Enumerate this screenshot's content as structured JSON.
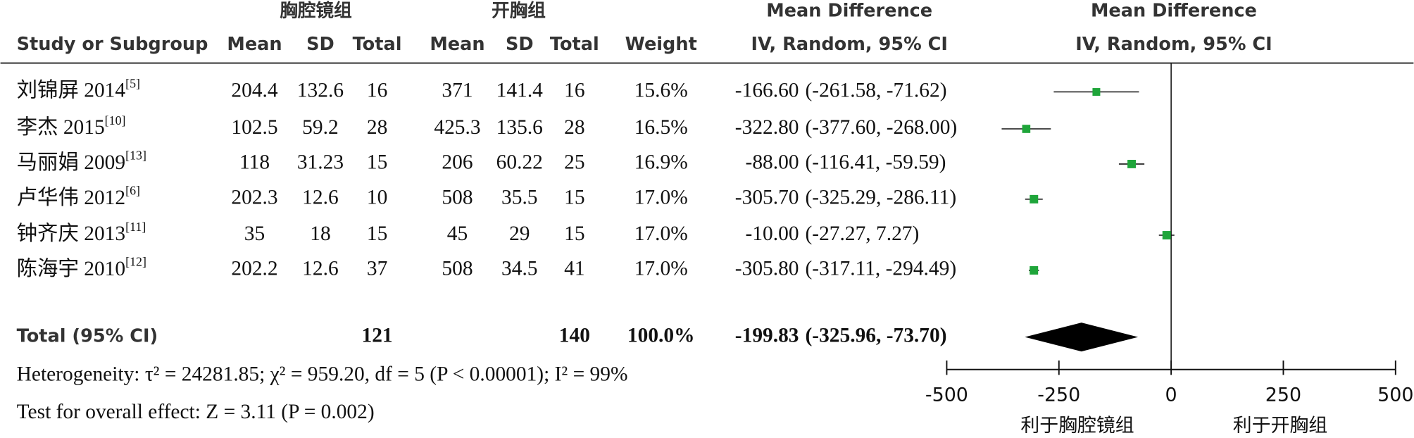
{
  "chart_data": {
    "type": "forest",
    "group_headers": [
      "胸腔镜组",
      "开胸组",
      "Mean Difference",
      "Mean Difference"
    ],
    "columns": [
      "Study or Subgroup",
      "Mean",
      "SD",
      "Total",
      "Mean",
      "SD",
      "Total",
      "Weight",
      "IV, Random, 95% CI",
      "IV, Random, 95% CI"
    ],
    "rows": [
      {
        "study": "刘锦屏 2014",
        "ref": "[5]",
        "exp_mean": 204.4,
        "exp_sd": 132.6,
        "exp_total": 16,
        "ctl_mean": 371,
        "ctl_sd": 141.4,
        "ctl_total": 16,
        "weight": 15.6,
        "weight_label": "15.6%",
        "md": -166.6,
        "md_label": "-166.60",
        "ci_low": -261.58,
        "ci_high": -71.62,
        "ci_label": "(-261.58, -71.62)"
      },
      {
        "study": "李杰 2015",
        "ref": "[10]",
        "exp_mean": 102.5,
        "exp_sd": 59.2,
        "exp_total": 28,
        "ctl_mean": 425.3,
        "ctl_sd": 135.6,
        "ctl_total": 28,
        "weight": 16.5,
        "weight_label": "16.5%",
        "md": -322.8,
        "md_label": "-322.80",
        "ci_low": -377.6,
        "ci_high": -268,
        "ci_label": "(-377.60, -268.00)"
      },
      {
        "study": "马丽娟 2009",
        "ref": "[13]",
        "exp_mean": 118,
        "exp_sd": 31.23,
        "exp_total": 15,
        "ctl_mean": 206,
        "ctl_sd": 60.22,
        "ctl_total": 25,
        "weight": 16.9,
        "weight_label": "16.9%",
        "md": -88,
        "md_label": "-88.00",
        "ci_low": -116.41,
        "ci_high": -59.59,
        "ci_label": "(-116.41, -59.59)"
      },
      {
        "study": "卢华伟 2012",
        "ref": "[6]",
        "exp_mean": 202.3,
        "exp_sd": 12.6,
        "exp_total": 10,
        "ctl_mean": 508,
        "ctl_sd": 35.5,
        "ctl_total": 15,
        "weight": 17.0,
        "weight_label": "17.0%",
        "md": -305.7,
        "md_label": "-305.70",
        "ci_low": -325.29,
        "ci_high": -286.11,
        "ci_label": "(-325.29, -286.11)"
      },
      {
        "study": "钟齐庆 2013",
        "ref": "[11]",
        "exp_mean": 35,
        "exp_sd": 18,
        "exp_total": 15,
        "ctl_mean": 45,
        "ctl_sd": 29,
        "ctl_total": 15,
        "weight": 17.0,
        "weight_label": "17.0%",
        "md": -10,
        "md_label": "-10.00",
        "ci_low": -27.27,
        "ci_high": 7.27,
        "ci_label": "(-27.27, 7.27)"
      },
      {
        "study": "陈海宇 2010",
        "ref": "[12]",
        "exp_mean": 202.2,
        "exp_sd": 12.6,
        "exp_total": 37,
        "ctl_mean": 508,
        "ctl_sd": 34.5,
        "ctl_total": 41,
        "weight": 17.0,
        "weight_label": "17.0%",
        "md": -305.8,
        "md_label": "-305.80",
        "ci_low": -317.11,
        "ci_high": -294.49,
        "ci_label": "(-317.11, -294.49)"
      }
    ],
    "total": {
      "label": "Total (95% CI)",
      "exp_total": 121,
      "ctl_total": 140,
      "weight": 100.0,
      "weight_label": "100.0%",
      "md": -199.83,
      "md_label": "-199.83",
      "ci_low": -325.96,
      "ci_high": -73.7,
      "ci_label": "(-325.96, -73.70)"
    },
    "heterogeneity": "Heterogeneity: τ² = 24281.85; χ² = 959.20, df = 5 (P < 0.00001); I² = 99%",
    "overall_effect": "Test for overall effect: Z = 3.11 (P = 0.002)",
    "xlim": [
      -500,
      500
    ],
    "xticks": [
      -500,
      -250,
      0,
      250,
      500
    ],
    "x_labels": [
      "利于胸腔镜组",
      "利于开胸组"
    ],
    "color": "#1fa53a"
  }
}
